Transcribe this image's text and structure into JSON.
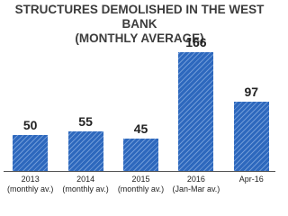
{
  "chart_data": {
    "type": "bar",
    "title": "STRUCTURES DEMOLISHED IN THE WEST BANK\n(MONTHLY AVERAGE)",
    "categories": [
      "2013\n(monthly av.)",
      "2014\n(monthly av.)",
      "2015\n(monthly av.)",
      "2016\n(Jan-Mar av.)",
      "Apr-16"
    ],
    "values": [
      50,
      55,
      45,
      166,
      97
    ],
    "color": "#2d68bd"
  }
}
